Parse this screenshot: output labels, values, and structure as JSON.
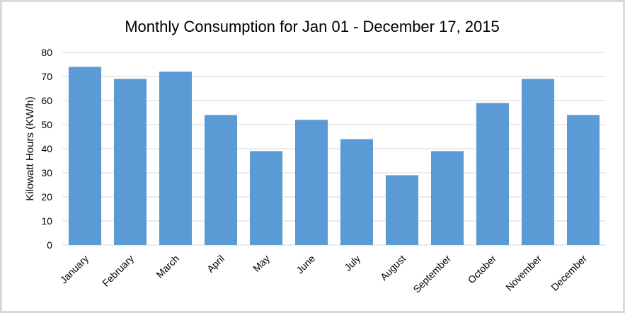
{
  "chart_data": {
    "type": "bar",
    "title": "Monthly Consumption for Jan 01 - December 17, 2015",
    "xlabel": "",
    "ylabel": "Kilowatt Hours (KW/h)",
    "ylim": [
      0,
      80
    ],
    "yticks": [
      0,
      10,
      20,
      30,
      40,
      50,
      60,
      70,
      80
    ],
    "grid": true,
    "legend": "none",
    "bar_color": "#5b9bd5",
    "categories": [
      "January",
      "February",
      "March",
      "April",
      "May",
      "June",
      "July",
      "August",
      "September",
      "October",
      "November",
      "December"
    ],
    "values": [
      74,
      69,
      72,
      54,
      39,
      52,
      44,
      29,
      39,
      59,
      69,
      54
    ]
  }
}
